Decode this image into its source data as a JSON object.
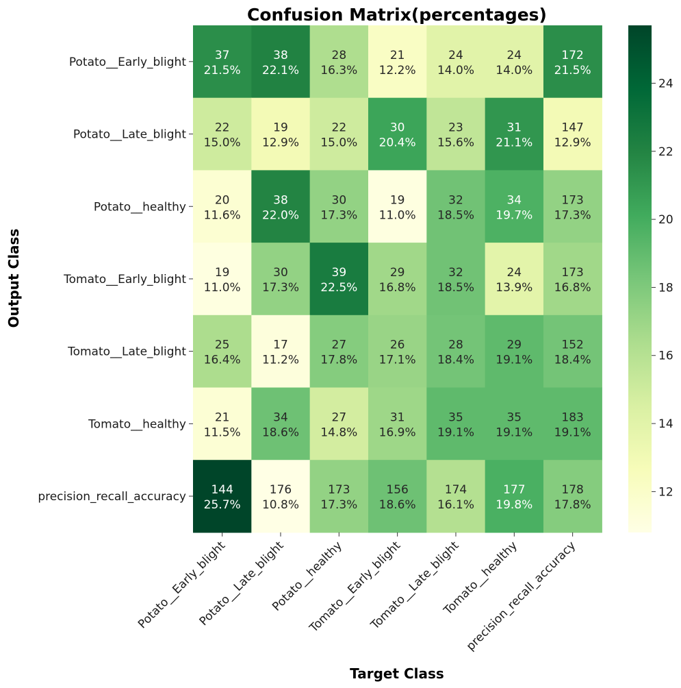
{
  "chart_data": {
    "type": "heatmap",
    "title": "Confusion Matrix(percentages)",
    "xlabel": "Target Class",
    "ylabel": "Output Class",
    "x_categories": [
      "Potato__Early_blight",
      "Potato__Late_blight",
      "Potato__healthy",
      "Tomato__Early_blight",
      "Tomato__Late_blight",
      "Tomato__healthy",
      "precision_recall_accuracy"
    ],
    "y_categories": [
      "Potato__Early_blight",
      "Potato__Late_blight",
      "Potato__healthy",
      "Tomato__Early_blight",
      "Tomato__Late_blight",
      "Tomato__healthy",
      "precision_recall_accuracy"
    ],
    "counts": [
      [
        37,
        38,
        28,
        21,
        24,
        24,
        172
      ],
      [
        22,
        19,
        22,
        30,
        23,
        31,
        147
      ],
      [
        20,
        38,
        30,
        19,
        32,
        34,
        173
      ],
      [
        19,
        30,
        39,
        29,
        32,
        24,
        173
      ],
      [
        25,
        17,
        27,
        26,
        28,
        29,
        152
      ],
      [
        21,
        34,
        27,
        31,
        35,
        35,
        183
      ],
      [
        144,
        176,
        173,
        156,
        174,
        177,
        178
      ]
    ],
    "percentages": [
      [
        "21.5%",
        "22.1%",
        "16.3%",
        "12.2%",
        "14.0%",
        "14.0%",
        "21.5%"
      ],
      [
        "15.0%",
        "12.9%",
        "15.0%",
        "20.4%",
        "15.6%",
        "21.1%",
        "12.9%"
      ],
      [
        "11.6%",
        "22.0%",
        "17.3%",
        "11.0%",
        "18.5%",
        "19.7%",
        "17.3%"
      ],
      [
        "11.0%",
        "17.3%",
        "22.5%",
        "16.8%",
        "18.5%",
        "13.9%",
        "16.8%"
      ],
      [
        "16.4%",
        "11.2%",
        "17.8%",
        "17.1%",
        "18.4%",
        "19.1%",
        "18.4%"
      ],
      [
        "11.5%",
        "18.6%",
        "14.8%",
        "16.9%",
        "19.1%",
        "19.1%",
        "19.1%"
      ],
      [
        "25.7%",
        "10.8%",
        "17.3%",
        "18.6%",
        "16.1%",
        "19.8%",
        "17.8%"
      ]
    ],
    "colorscale": "YlGn",
    "color_range": [
      10.8,
      25.7
    ],
    "colorbar_ticks": [
      12,
      14,
      16,
      18,
      20,
      22,
      24
    ],
    "colors": [
      "#ffffe5",
      "#f7fcb9",
      "#d9f0a3",
      "#addd8e",
      "#78c679",
      "#41ab5d",
      "#238443",
      "#006837",
      "#004529"
    ]
  }
}
